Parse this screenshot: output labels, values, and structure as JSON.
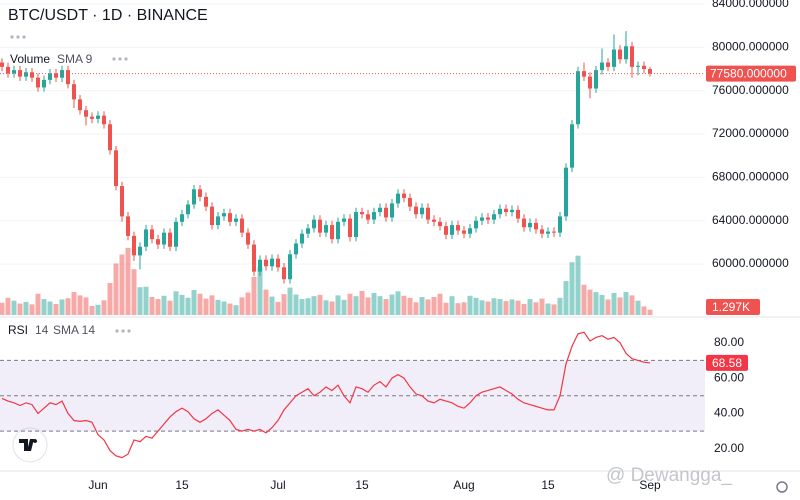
{
  "watermark": "@ Dewangga_",
  "chart_data": [
    {
      "type": "candlestick",
      "title": "BTC/USDT · 1D · BINANCE",
      "categories": [
        null,
        null,
        null,
        null,
        null,
        null,
        null,
        null,
        null,
        null,
        null,
        null,
        null,
        null,
        null,
        null,
        "Jun",
        null,
        null,
        null,
        null,
        null,
        null,
        null,
        null,
        null,
        null,
        null,
        null,
        null,
        "15",
        null,
        null,
        null,
        null,
        null,
        null,
        null,
        null,
        null,
        null,
        null,
        null,
        null,
        null,
        null,
        "Jul",
        null,
        null,
        null,
        null,
        null,
        null,
        null,
        null,
        null,
        null,
        null,
        null,
        null,
        "15",
        null,
        null,
        null,
        null,
        null,
        null,
        null,
        null,
        null,
        null,
        null,
        null,
        null,
        null,
        null,
        null,
        "Aug",
        null,
        null,
        null,
        null,
        null,
        null,
        null,
        null,
        null,
        null,
        null,
        null,
        null,
        "15",
        null,
        null,
        null,
        null,
        null,
        null,
        null,
        null,
        null,
        null,
        null,
        null,
        null,
        null,
        null,
        null,
        "Sep"
      ],
      "open": [
        78600,
        78200,
        77600,
        77900,
        77300,
        77700,
        77200,
        76300,
        77000,
        77600,
        77200,
        77900,
        76600,
        75200,
        74200,
        73600,
        73400,
        73700,
        72900,
        70500,
        67200,
        64400,
        62600,
        60800,
        61600,
        63200,
        62300,
        61800,
        62900,
        61600,
        63900,
        64600,
        65500,
        66900,
        66200,
        65300,
        63600,
        64400,
        64700,
        63900,
        64200,
        62900,
        61800,
        59300,
        60400,
        59800,
        60500,
        59700,
        58600,
        60900,
        61900,
        62800,
        63300,
        64100,
        62900,
        63600,
        62300,
        63900,
        64200,
        62500,
        64800,
        64600,
        64100,
        64800,
        65200,
        64300,
        65600,
        66500,
        66100,
        65300,
        64600,
        65200,
        64100,
        63900,
        63500,
        62700,
        63600,
        63100,
        62800,
        63300,
        64000,
        64300,
        64100,
        64600,
        65100,
        64800,
        65000,
        64200,
        63400,
        63800,
        63200,
        62800,
        63000,
        62900,
        64400,
        68900,
        72900,
        77800,
        77300,
        76200,
        77900,
        78600,
        78200,
        79800,
        78900,
        80100,
        78200,
        78300,
        78000
      ],
      "high": [
        79000,
        78600,
        78300,
        78300,
        78100,
        78100,
        77600,
        77400,
        78000,
        78000,
        78300,
        78300,
        77000,
        75600,
        74600,
        74000,
        74100,
        74100,
        73300,
        70900,
        67600,
        64800,
        63000,
        62000,
        63600,
        63600,
        62700,
        63300,
        63300,
        64300,
        65000,
        65900,
        67300,
        67300,
        66600,
        65700,
        64800,
        65100,
        65100,
        64600,
        64600,
        63300,
        62200,
        60800,
        60800,
        60900,
        60900,
        60100,
        61300,
        62300,
        63200,
        63700,
        64500,
        64500,
        64000,
        64000,
        64300,
        64600,
        64600,
        65200,
        65200,
        65000,
        65200,
        65600,
        65600,
        66000,
        66900,
        66900,
        66500,
        65700,
        65600,
        65600,
        64500,
        64300,
        63900,
        64000,
        64000,
        63500,
        63700,
        64400,
        64700,
        64700,
        65000,
        65500,
        65500,
        65400,
        65400,
        64600,
        64200,
        64200,
        63600,
        63400,
        63400,
        64800,
        69300,
        73300,
        78200,
        78600,
        77700,
        78300,
        79900,
        79000,
        81200,
        80200,
        81500,
        80500,
        78700,
        78700,
        78200
      ],
      "low": [
        77800,
        77200,
        77200,
        76900,
        76900,
        76800,
        75900,
        75900,
        76600,
        76800,
        76800,
        76200,
        74400,
        73800,
        72800,
        73000,
        73000,
        72500,
        70100,
        66800,
        63900,
        62200,
        60300,
        59500,
        61200,
        61900,
        61400,
        61400,
        61200,
        61200,
        63500,
        64200,
        65100,
        65800,
        64900,
        63200,
        63200,
        64000,
        63500,
        63500,
        62500,
        61400,
        58900,
        58900,
        59400,
        59400,
        59300,
        58200,
        58200,
        60500,
        61500,
        62400,
        62900,
        62500,
        62500,
        61900,
        61900,
        63500,
        62100,
        62100,
        64200,
        63700,
        63700,
        64400,
        63900,
        63900,
        65200,
        65700,
        64900,
        64200,
        64200,
        63700,
        63500,
        63100,
        62300,
        62300,
        62700,
        62400,
        62400,
        62900,
        63600,
        63700,
        63700,
        64200,
        64400,
        64400,
        63800,
        63000,
        63000,
        62800,
        62400,
        62400,
        62500,
        62500,
        64000,
        68500,
        72500,
        76900,
        75300,
        75800,
        77500,
        77800,
        77800,
        78500,
        78500,
        77200,
        77400,
        77600,
        77300
      ],
      "close": [
        78200,
        77600,
        77900,
        77300,
        77700,
        77200,
        76300,
        77000,
        77600,
        77200,
        77900,
        76600,
        75200,
        74200,
        73600,
        73400,
        73700,
        72900,
        70500,
        67200,
        64400,
        62600,
        60800,
        61600,
        63200,
        62300,
        61800,
        62900,
        61600,
        63900,
        64600,
        65500,
        66900,
        66200,
        65300,
        63600,
        64400,
        64700,
        63900,
        64200,
        62900,
        61800,
        59300,
        60400,
        59800,
        60500,
        59700,
        58600,
        60900,
        61900,
        62800,
        63300,
        64100,
        62900,
        63600,
        62300,
        63900,
        64200,
        62500,
        64800,
        64600,
        64100,
        64800,
        65200,
        64300,
        65600,
        66500,
        66100,
        65300,
        64600,
        65200,
        64100,
        63900,
        63500,
        62700,
        63600,
        63100,
        62800,
        63300,
        64000,
        64300,
        64100,
        64600,
        65100,
        64800,
        65000,
        64200,
        63400,
        63800,
        63200,
        62800,
        63000,
        62900,
        64400,
        68900,
        72900,
        77800,
        77300,
        76200,
        77900,
        78600,
        78200,
        79800,
        78900,
        80100,
        78200,
        78300,
        78000,
        77580
      ],
      "up_color": "#26a69a",
      "down_color": "#ef5350",
      "ylim": [
        55300,
        84370
      ],
      "yticks": [
        {
          "value": 84000,
          "label": "84000.000000"
        },
        {
          "value": 80000,
          "label": "80000.000000"
        },
        {
          "value": 76000,
          "label": "76000.000000"
        },
        {
          "value": 72000,
          "label": "72000.000000"
        },
        {
          "value": 68000,
          "label": "68000.000000"
        },
        {
          "value": 64000,
          "label": "64000.000000"
        },
        {
          "value": 60000,
          "label": "60000.000000"
        }
      ],
      "last_label": {
        "value": 77580,
        "label": "77580.000000"
      },
      "grid": true
    },
    {
      "type": "bar",
      "title": "Volume",
      "indicator": "SMA 9",
      "values": [
        3000,
        4200,
        3500,
        2800,
        3200,
        2600,
        5200,
        3900,
        3300,
        2700,
        3800,
        4100,
        5600,
        4800,
        4300,
        2200,
        2500,
        3600,
        7800,
        12600,
        14800,
        16400,
        11200,
        6800,
        6900,
        4400,
        3900,
        4700,
        3500,
        5800,
        4900,
        4200,
        6100,
        5200,
        4000,
        4800,
        3700,
        3300,
        2800,
        2400,
        4300,
        5500,
        9300,
        11800,
        6200,
        4500,
        3200,
        5100,
        6700,
        5000,
        3900,
        4100,
        4600,
        4900,
        3600,
        3300,
        4800,
        3700,
        5200,
        4600,
        5900,
        4300,
        5400,
        4600,
        3900,
        5000,
        5800,
        4700,
        4200,
        3100,
        4400,
        3800,
        4400,
        5200,
        3000,
        4600,
        2900,
        3100,
        4700,
        4200,
        3600,
        3300,
        4100,
        3900,
        3400,
        3800,
        3500,
        2700,
        3900,
        3100,
        4000,
        2800,
        2600,
        4200,
        8300,
        12900,
        14500,
        7400,
        6200,
        5600,
        4900,
        3800,
        5400,
        4300,
        5600,
        4800,
        3500,
        2100,
        1297
      ],
      "up_color": "rgba(38,166,154,0.5)",
      "down_color": "rgba(239,83,80,0.5)",
      "ylim": [
        0,
        22000
      ],
      "last_label": {
        "value": 1297,
        "label": "1.297K"
      }
    },
    {
      "type": "line",
      "title": "RSI",
      "params": "14",
      "indicator": "SMA 14",
      "values": [
        48.5,
        47,
        46,
        44.5,
        46,
        45,
        40,
        43,
        46,
        45,
        47,
        40,
        36,
        35.5,
        36,
        35,
        28,
        25,
        19,
        16,
        15,
        17,
        25,
        24,
        27,
        26,
        30,
        34,
        38,
        41,
        43,
        41,
        37,
        35,
        37,
        40,
        42,
        39,
        36,
        31,
        30,
        31,
        30,
        31,
        29,
        32,
        36,
        42,
        46,
        50,
        52,
        54,
        50,
        52,
        55,
        53,
        56,
        50,
        46,
        55,
        54,
        52,
        56,
        58,
        55,
        60,
        62,
        60,
        55,
        51,
        50,
        47,
        46,
        48,
        47,
        46,
        44,
        43,
        46,
        50,
        52,
        53,
        54,
        55,
        53,
        51,
        48,
        46,
        45,
        44,
        43,
        42,
        42,
        50,
        68,
        78,
        85,
        86,
        81,
        83,
        84,
        82,
        83,
        80,
        74,
        71,
        70,
        69,
        68.58
      ],
      "color": "#f23645",
      "ylim": [
        8,
        94
      ],
      "yticks": [
        {
          "value": 80,
          "label": "80.00"
        },
        {
          "value": 60,
          "label": "60.00"
        },
        {
          "value": 40,
          "label": "40.00"
        },
        {
          "value": 20,
          "label": "20.00"
        }
      ],
      "levels": [
        70,
        50,
        30
      ],
      "band_color": "rgba(126,87,194,0.1)"
    }
  ]
}
